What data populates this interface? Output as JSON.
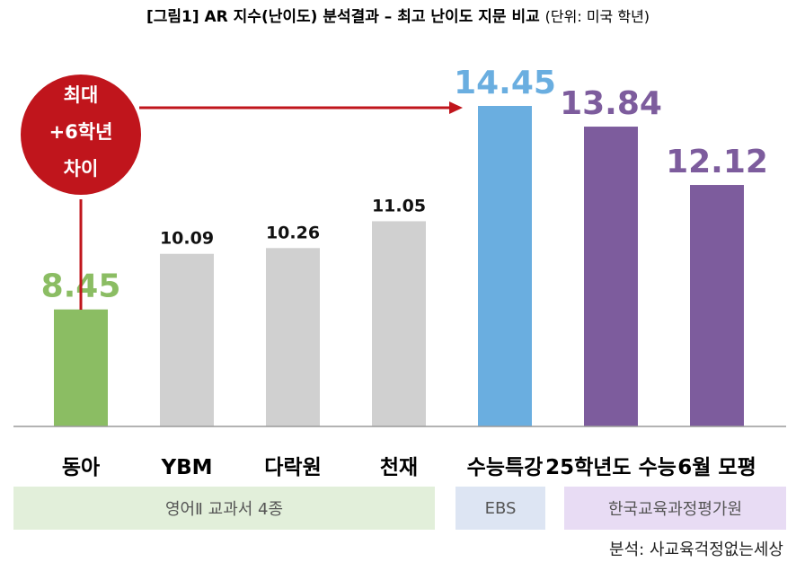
{
  "title": {
    "main": "[그림1] AR 지수(난이도) 분석결과 – 최고 난이도 지문 비교",
    "unit": "(단위: 미국 학년)"
  },
  "callout": {
    "line1": "최대",
    "line2": "+6학년",
    "line3": "차이"
  },
  "groups": [
    {
      "label": "영어Ⅱ 교과서 4종",
      "color": "#e2efda"
    },
    {
      "label": "EBS",
      "color": "#dde5f3"
    },
    {
      "label": "한국교육과정평가원",
      "color": "#e8dcf4"
    }
  ],
  "source": "분석: 사교육걱정없는세상",
  "colors": {
    "green": "#8bbd63",
    "gray": "#d0d0d0",
    "blue": "#6aaee0",
    "purple": "#7d5c9d",
    "red": "#c0151c"
  },
  "chart_data": {
    "type": "bar",
    "categories": [
      "동아",
      "YBM",
      "다락원",
      "천재",
      "수능특강",
      "25학년도 수능",
      "6월 모평"
    ],
    "values": [
      8.45,
      10.09,
      10.26,
      11.05,
      14.45,
      13.84,
      12.12
    ],
    "value_labels": [
      "8.45",
      "10.09",
      "10.26",
      "11.05",
      "14.45",
      "13.84",
      "12.12"
    ],
    "bar_colors": [
      "green",
      "gray",
      "gray",
      "gray",
      "blue",
      "purple",
      "purple"
    ],
    "ylim": [
      5.0,
      14.45
    ],
    "grid": false,
    "legend": "none"
  }
}
